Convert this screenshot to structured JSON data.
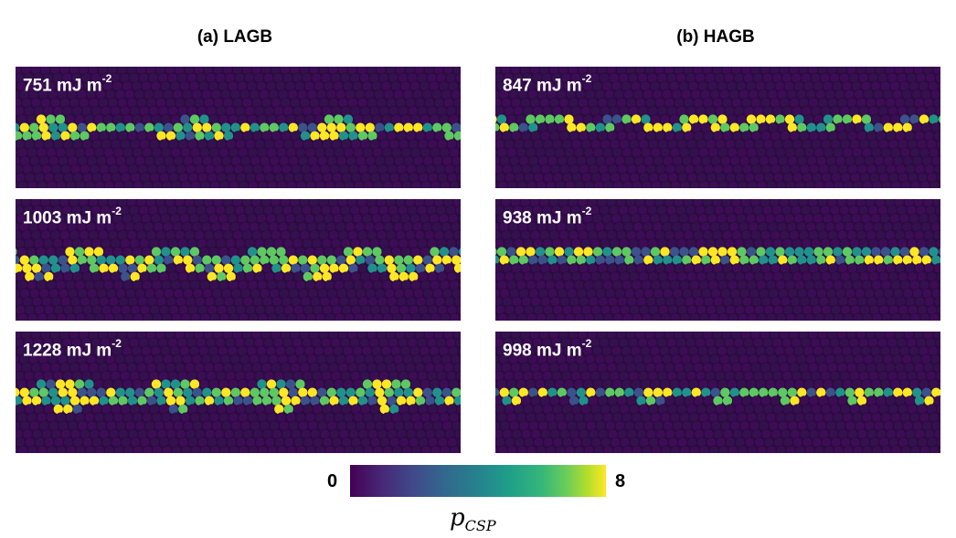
{
  "figure": {
    "panel_a_title": "(a) LAGB",
    "panel_b_title": "(b) HAGB",
    "panels": [
      {
        "energy": "751",
        "unit": "mJ m",
        "exp": "-2",
        "pattern": "periodic-clusters"
      },
      {
        "energy": "1003",
        "unit": "mJ m",
        "exp": "-2",
        "pattern": "zigzag-clusters"
      },
      {
        "energy": "1228",
        "unit": "mJ m",
        "exp": "-2",
        "pattern": "irregular-clusters"
      },
      {
        "energy": "847",
        "unit": "mJ m",
        "exp": "-2",
        "pattern": "narrow-wave"
      },
      {
        "energy": "938",
        "unit": "mJ m",
        "exp": "-2",
        "pattern": "narrow-straight"
      },
      {
        "energy": "998",
        "unit": "mJ m",
        "exp": "-2",
        "pattern": "narrow-wave-step"
      }
    ],
    "colorbar": {
      "min": "0",
      "max": "8",
      "label_main": "p",
      "label_sub": "CSP",
      "colormap": [
        "#440154",
        "#3b528b",
        "#21918c",
        "#5ec962",
        "#fde725"
      ]
    }
  }
}
